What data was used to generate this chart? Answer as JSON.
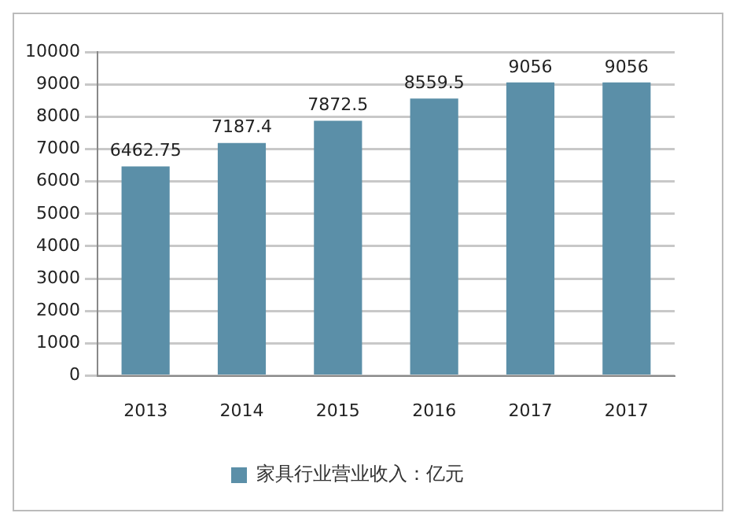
{
  "chart_data": {
    "type": "bar",
    "categories": [
      "2013",
      "2014",
      "2015",
      "2016",
      "2017",
      "2017"
    ],
    "series": [
      {
        "name": "家具行业营业收入：亿元",
        "color": "#5b8fa8",
        "values": [
          6462.75,
          7187.4,
          7872.5,
          8559.5,
          9056,
          9056
        ]
      }
    ],
    "ylim": [
      0,
      10000
    ],
    "yticks": [
      0,
      1000,
      2000,
      3000,
      4000,
      5000,
      6000,
      7000,
      8000,
      9000,
      10000
    ],
    "grid": "y",
    "legend": "bottom",
    "data_labels": true
  }
}
